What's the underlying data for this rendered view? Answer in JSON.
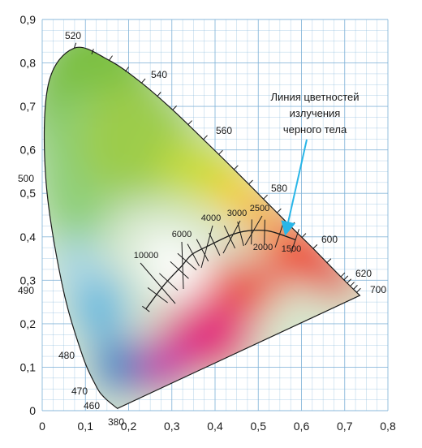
{
  "chart_data": {
    "type": "scatter",
    "title": "",
    "xlabel": "",
    "ylabel": "",
    "xlim": [
      0,
      0.8
    ],
    "ylim": [
      0,
      0.9
    ],
    "grid": true,
    "x_tick_labels": [
      "0",
      "0,1",
      "0,2",
      "0,3",
      "0,4",
      "0,5",
      "0,6",
      "0,7",
      "0,8"
    ],
    "y_tick_labels": [
      "0",
      "0,1",
      "0,2",
      "0,3",
      "0,4",
      "0,5",
      "0,6",
      "0,7",
      "0,8",
      "0,9"
    ],
    "colors": {
      "grid": "#7fb2d8",
      "annotation_arrow": "#29b6e8",
      "outline": "#1a1a1a"
    },
    "spectral_locus": {
      "points": [
        {
          "nm": 380,
          "x": 0.174,
          "y": 0.005
        },
        {
          "nm": 460,
          "x": 0.144,
          "y": 0.03
        },
        {
          "nm": 470,
          "x": 0.124,
          "y": 0.058
        },
        {
          "nm": 480,
          "x": 0.091,
          "y": 0.133
        },
        {
          "nm": 490,
          "x": 0.045,
          "y": 0.295
        },
        {
          "nm": 500,
          "x": 0.008,
          "y": 0.538
        },
        {
          "nm": 510,
          "x": 0.014,
          "y": 0.75
        },
        {
          "nm": 520,
          "x": 0.074,
          "y": 0.834
        },
        {
          "nm": 530,
          "x": 0.155,
          "y": 0.806
        },
        {
          "nm": 540,
          "x": 0.23,
          "y": 0.754
        },
        {
          "nm": 550,
          "x": 0.302,
          "y": 0.692
        },
        {
          "nm": 560,
          "x": 0.373,
          "y": 0.624
        },
        {
          "nm": 570,
          "x": 0.444,
          "y": 0.555
        },
        {
          "nm": 580,
          "x": 0.512,
          "y": 0.487
        },
        {
          "nm": 590,
          "x": 0.575,
          "y": 0.424
        },
        {
          "nm": 600,
          "x": 0.627,
          "y": 0.373
        },
        {
          "nm": 620,
          "x": 0.691,
          "y": 0.308
        },
        {
          "nm": 700,
          "x": 0.735,
          "y": 0.265
        }
      ],
      "labels": [
        {
          "text": "520",
          "nm": 520
        },
        {
          "text": "540",
          "nm": 540
        },
        {
          "text": "560",
          "nm": 560
        },
        {
          "text": "580",
          "nm": 580
        },
        {
          "text": "600",
          "nm": 600
        },
        {
          "text": "620",
          "nm": 620
        },
        {
          "text": "700",
          "nm": 700
        },
        {
          "text": "500",
          "nm": 500
        },
        {
          "text": "490",
          "nm": 490
        },
        {
          "text": "480",
          "nm": 480
        },
        {
          "text": "470",
          "nm": 470
        },
        {
          "text": "460",
          "nm": 460
        },
        {
          "text": "380",
          "nm": 380
        }
      ]
    },
    "planckian_locus": {
      "points": [
        {
          "x": 0.24,
          "y": 0.234
        },
        {
          "x": 0.281,
          "y": 0.288
        },
        {
          "x": 0.322,
          "y": 0.332
        },
        {
          "x": 0.346,
          "y": 0.359
        },
        {
          "x": 0.38,
          "y": 0.377
        },
        {
          "x": 0.437,
          "y": 0.404
        },
        {
          "x": 0.477,
          "y": 0.414
        },
        {
          "x": 0.526,
          "y": 0.413
        },
        {
          "x": 0.586,
          "y": 0.393
        }
      ],
      "temperature_labels": [
        {
          "text": "10000",
          "T": 10000
        },
        {
          "text": "6000",
          "T": 6000
        },
        {
          "text": "4000",
          "T": 4000
        },
        {
          "text": "3000",
          "T": 3000
        },
        {
          "text": "2500",
          "T": 2500
        },
        {
          "text": "2000",
          "T": 2000
        },
        {
          "text": "1500",
          "T": 1500
        }
      ]
    },
    "annotation": {
      "lines": [
        "Линия цветностей",
        "излучения",
        "черного тела"
      ]
    }
  }
}
